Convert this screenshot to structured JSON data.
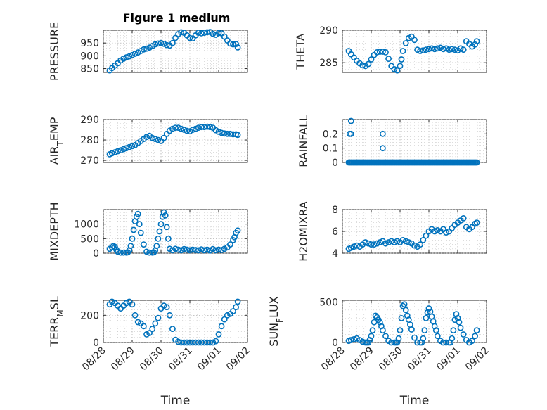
{
  "figure": {
    "title": "Figure 1 medium",
    "marker_color": "#0072BD"
  },
  "chart_data": [
    {
      "type": "scatter",
      "ylabel": "PRESSURE",
      "ylim": [
        835,
        1000
      ],
      "yticks": [
        850,
        900,
        950
      ],
      "xlim": [
        0,
        5
      ],
      "xticks": [],
      "grid": true,
      "series": [
        {
          "x": [
            0.22,
            0.3,
            0.4,
            0.5,
            0.6,
            0.7,
            0.8,
            0.9,
            1.0,
            1.1,
            1.2,
            1.3,
            1.4,
            1.5,
            1.6,
            1.7,
            1.8,
            1.9,
            2.0,
            2.1,
            2.2,
            2.3,
            2.4,
            2.5,
            2.6,
            2.7,
            2.8,
            2.9,
            3.0,
            3.1,
            3.2,
            3.3,
            3.4,
            3.5,
            3.6,
            3.7,
            3.8,
            3.9,
            4.0,
            4.1,
            4.2,
            4.3,
            4.4,
            4.5,
            4.6,
            4.66
          ],
          "y": [
            843,
            852,
            862,
            871,
            882,
            889,
            894,
            898,
            903,
            908,
            913,
            919,
            925,
            928,
            932,
            938,
            945,
            948,
            950,
            947,
            942,
            940,
            950,
            970,
            985,
            992,
            990,
            980,
            970,
            968,
            980,
            990,
            988,
            990,
            992,
            993,
            986,
            982,
            989,
            988,
            975,
            960,
            948,
            945,
            946,
            933
          ]
        }
      ]
    },
    {
      "type": "scatter",
      "ylabel": "THETA",
      "ylim": [
        283.5,
        290
      ],
      "yticks": [
        285,
        290
      ],
      "xlim": [
        0,
        5
      ],
      "xticks": [],
      "grid": true,
      "series": [
        {
          "x": [
            0.22,
            0.3,
            0.4,
            0.5,
            0.6,
            0.7,
            0.8,
            0.9,
            1.0,
            1.1,
            1.2,
            1.3,
            1.4,
            1.5,
            1.6,
            1.7,
            1.8,
            1.9,
            2.0,
            2.05,
            2.1,
            2.2,
            2.3,
            2.4,
            2.5,
            2.6,
            2.7,
            2.8,
            2.9,
            3.0,
            3.1,
            3.2,
            3.3,
            3.4,
            3.5,
            3.6,
            3.7,
            3.8,
            3.9,
            4.0,
            4.1,
            4.2,
            4.3,
            4.4,
            4.5,
            4.6,
            4.66
          ],
          "y": [
            286.8,
            286.3,
            285.8,
            285.3,
            284.9,
            284.6,
            284.5,
            284.8,
            285.5,
            286.2,
            286.6,
            286.7,
            286.7,
            286.6,
            285.6,
            284.5,
            284.0,
            283.8,
            284.5,
            285.5,
            286.8,
            288.0,
            288.8,
            289.0,
            288.5,
            287.0,
            286.8,
            286.9,
            287.0,
            287.1,
            287.2,
            287.1,
            287.2,
            287.3,
            287.1,
            287.2,
            287.0,
            287.1,
            287.0,
            286.9,
            287.2,
            287.0,
            288.3,
            287.9,
            287.5,
            287.8,
            288.3
          ]
        }
      ]
    },
    {
      "type": "scatter",
      "ylabel": "AIR_TEMP",
      "ylim": [
        269,
        290
      ],
      "yticks": [
        270,
        280,
        290
      ],
      "xlim": [
        0,
        5
      ],
      "xticks": [],
      "grid": true,
      "series": [
        {
          "x": [
            0.22,
            0.3,
            0.4,
            0.5,
            0.6,
            0.7,
            0.8,
            0.9,
            1.0,
            1.1,
            1.2,
            1.3,
            1.4,
            1.5,
            1.6,
            1.7,
            1.8,
            1.9,
            2.0,
            2.1,
            2.2,
            2.3,
            2.4,
            2.5,
            2.6,
            2.7,
            2.8,
            2.9,
            3.0,
            3.1,
            3.2,
            3.3,
            3.4,
            3.5,
            3.6,
            3.7,
            3.8,
            3.9,
            4.0,
            4.1,
            4.2,
            4.3,
            4.4,
            4.5,
            4.6,
            4.66
          ],
          "y": [
            273,
            273.5,
            274,
            274.5,
            275,
            275.5,
            276,
            276.5,
            277,
            277.5,
            278.5,
            279.5,
            280.5,
            281.5,
            282,
            281,
            280.5,
            280,
            279.5,
            281,
            283,
            284.5,
            285.5,
            286,
            286,
            285.5,
            285,
            284.5,
            284.3,
            285,
            285.5,
            286,
            286.3,
            286.3,
            286.5,
            286.3,
            286,
            284.8,
            284,
            283.5,
            283.2,
            283,
            283,
            282.8,
            282.8,
            282.5
          ]
        }
      ]
    },
    {
      "type": "scatter",
      "ylabel": "RAINFALL",
      "ylim": [
        0,
        0.3
      ],
      "yticks": [
        0,
        0.1,
        0.2
      ],
      "xlim": [
        0,
        5
      ],
      "xticks": [],
      "grid": true,
      "series": [
        {
          "x": [
            0.22,
            0.26,
            0.3,
            0.34,
            0.38,
            0.42,
            0.46,
            0.5,
            0.54,
            0.58,
            0.62,
            0.66,
            0.7,
            0.74,
            0.78,
            0.82,
            0.86,
            0.9,
            0.94,
            0.98,
            1.02,
            1.06,
            1.1,
            1.14,
            1.18,
            1.22,
            1.26,
            1.3,
            1.34,
            1.38,
            1.42,
            1.46,
            1.5,
            1.54,
            1.58,
            1.62,
            1.66,
            1.7,
            1.74,
            1.78,
            1.82,
            1.86,
            1.9,
            1.94,
            1.98,
            2.02,
            2.06,
            2.1,
            2.14,
            2.18,
            2.22,
            2.26,
            2.3,
            2.34,
            2.38,
            2.42,
            2.46,
            2.5,
            2.54,
            2.58,
            2.62,
            2.66,
            2.7,
            2.74,
            2.78,
            2.82,
            2.86,
            2.9,
            2.94,
            2.98,
            3.02,
            3.06,
            3.1,
            3.14,
            3.18,
            3.22,
            3.26,
            3.3,
            3.34,
            3.38,
            3.42,
            3.46,
            3.5,
            3.54,
            3.58,
            3.62,
            3.66,
            3.7,
            3.74,
            3.78,
            3.82,
            3.86,
            3.9,
            3.94,
            3.98,
            4.02,
            4.06,
            4.1,
            4.14,
            4.18,
            4.22,
            4.26,
            4.3,
            4.34,
            4.38,
            4.42,
            4.46,
            4.5,
            4.54,
            4.58,
            4.62,
            4.66,
            0.25,
            0.3,
            0.3,
            1.4,
            1.4
          ],
          "y": [
            0,
            0,
            0,
            0,
            0,
            0,
            0,
            0,
            0,
            0,
            0,
            0,
            0,
            0,
            0,
            0,
            0,
            0,
            0,
            0,
            0,
            0,
            0,
            0,
            0,
            0,
            0,
            0,
            0,
            0,
            0,
            0,
            0,
            0,
            0,
            0,
            0,
            0,
            0,
            0,
            0,
            0,
            0,
            0,
            0,
            0,
            0,
            0,
            0,
            0,
            0,
            0,
            0,
            0,
            0,
            0,
            0,
            0,
            0,
            0,
            0,
            0,
            0,
            0,
            0,
            0,
            0,
            0,
            0,
            0,
            0,
            0,
            0,
            0,
            0,
            0,
            0,
            0,
            0,
            0,
            0,
            0,
            0,
            0,
            0,
            0,
            0,
            0,
            0,
            0,
            0,
            0,
            0,
            0,
            0,
            0,
            0,
            0,
            0,
            0,
            0,
            0,
            0,
            0,
            0,
            0,
            0,
            0,
            0,
            0,
            0,
            0,
            0.2,
            0.2,
            0.29,
            0.2,
            0.1
          ]
        }
      ]
    },
    {
      "type": "scatter",
      "ylabel": "MIXDEPTH",
      "ylim": [
        0,
        1500
      ],
      "yticks": [
        0,
        500,
        1000
      ],
      "xlim": [
        0,
        5
      ],
      "xticks": [],
      "grid": true,
      "series": [
        {
          "x": [
            0.22,
            0.3,
            0.35,
            0.4,
            0.45,
            0.5,
            0.6,
            0.7,
            0.8,
            0.85,
            0.9,
            0.95,
            1.0,
            1.05,
            1.1,
            1.15,
            1.2,
            1.25,
            1.3,
            1.4,
            1.5,
            1.6,
            1.7,
            1.75,
            1.8,
            1.85,
            1.9,
            1.95,
            2.0,
            2.05,
            2.1,
            2.15,
            2.2,
            2.25,
            2.3,
            2.4,
            2.5,
            2.6,
            2.7,
            2.8,
            2.9,
            3.0,
            3.1,
            3.2,
            3.3,
            3.4,
            3.5,
            3.6,
            3.7,
            3.8,
            3.9,
            4.0,
            4.1,
            4.2,
            4.3,
            4.4,
            4.5,
            4.55,
            4.6,
            4.66
          ],
          "y": [
            150,
            200,
            250,
            220,
            120,
            50,
            20,
            20,
            20,
            30,
            100,
            250,
            500,
            800,
            1100,
            1250,
            1350,
            1000,
            700,
            300,
            50,
            20,
            20,
            30,
            100,
            250,
            500,
            750,
            1000,
            1250,
            1400,
            1300,
            900,
            500,
            150,
            100,
            150,
            120,
            100,
            140,
            120,
            100,
            120,
            110,
            100,
            130,
            100,
            120,
            90,
            140,
            100,
            120,
            110,
            150,
            200,
            300,
            450,
            550,
            700,
            780
          ]
        }
      ]
    },
    {
      "type": "scatter",
      "ylabel": "H2OMIXRA",
      "ylim": [
        4,
        8
      ],
      "yticks": [
        4,
        6,
        8
      ],
      "xlim": [
        0,
        5
      ],
      "xticks": [],
      "grid": true,
      "series": [
        {
          "x": [
            0.22,
            0.3,
            0.4,
            0.5,
            0.6,
            0.7,
            0.8,
            0.9,
            1.0,
            1.1,
            1.2,
            1.3,
            1.4,
            1.5,
            1.6,
            1.7,
            1.8,
            1.9,
            2.0,
            2.1,
            2.2,
            2.3,
            2.4,
            2.5,
            2.6,
            2.7,
            2.8,
            2.9,
            3.0,
            3.1,
            3.2,
            3.3,
            3.4,
            3.5,
            3.6,
            3.7,
            3.8,
            3.9,
            4.0,
            4.1,
            4.2,
            4.3,
            4.4,
            4.5,
            4.6,
            4.66
          ],
          "y": [
            4.4,
            4.5,
            4.6,
            4.7,
            4.6,
            4.8,
            5.0,
            4.9,
            4.8,
            4.8,
            4.9,
            5.0,
            5.1,
            4.9,
            5.0,
            5.1,
            5.0,
            5.1,
            5.0,
            5.2,
            5.1,
            5.0,
            4.9,
            4.7,
            4.6,
            4.8,
            5.2,
            5.6,
            6.0,
            6.2,
            6.0,
            6.1,
            6.0,
            6.2,
            5.9,
            6.0,
            6.3,
            6.6,
            6.8,
            7.0,
            7.2,
            6.4,
            6.2,
            6.4,
            6.7,
            6.8
          ]
        }
      ]
    },
    {
      "type": "scatter",
      "ylabel": "TERR_MSL",
      "ylim": [
        0,
        310
      ],
      "yticks": [
        0,
        200
      ],
      "xlim": [
        0,
        5
      ],
      "xticks": [
        "08/28",
        "08/29",
        "08/30",
        "08/31",
        "09/01",
        "09/02"
      ],
      "xtick_pos": [
        0,
        1,
        2,
        3,
        4,
        5
      ],
      "xlabel": "Time",
      "grid": true,
      "series": [
        {
          "x": [
            0.22,
            0.3,
            0.4,
            0.5,
            0.6,
            0.7,
            0.8,
            0.9,
            1.0,
            1.1,
            1.2,
            1.3,
            1.4,
            1.5,
            1.6,
            1.7,
            1.8,
            1.9,
            2.0,
            2.1,
            2.2,
            2.3,
            2.4,
            2.5,
            2.6,
            2.7,
            2.8,
            2.9,
            3.0,
            3.1,
            3.2,
            3.3,
            3.4,
            3.5,
            3.6,
            3.7,
            3.8,
            3.9,
            4.0,
            4.1,
            4.2,
            4.3,
            4.4,
            4.5,
            4.6,
            4.66
          ],
          "y": [
            280,
            300,
            290,
            270,
            250,
            270,
            290,
            300,
            280,
            200,
            150,
            140,
            120,
            60,
            70,
            100,
            140,
            180,
            250,
            270,
            260,
            200,
            100,
            20,
            5,
            0,
            0,
            0,
            0,
            0,
            0,
            0,
            0,
            0,
            0,
            0,
            0,
            10,
            60,
            120,
            170,
            200,
            210,
            230,
            260,
            300
          ]
        }
      ]
    },
    {
      "type": "scatter",
      "ylabel": "SUN_FLUX",
      "ylim": [
        0,
        520
      ],
      "yticks": [
        0,
        500
      ],
      "xlim": [
        0,
        5
      ],
      "xticks": [
        "08/28",
        "08/29",
        "08/30",
        "08/31",
        "09/01",
        "09/02"
      ],
      "xtick_pos": [
        0,
        1,
        2,
        3,
        4,
        5
      ],
      "xlabel": "Time",
      "grid": true,
      "series": [
        {
          "x": [
            0.22,
            0.3,
            0.4,
            0.5,
            0.6,
            0.7,
            0.8,
            0.85,
            0.9,
            0.95,
            1.0,
            1.05,
            1.1,
            1.15,
            1.2,
            1.25,
            1.3,
            1.35,
            1.4,
            1.5,
            1.6,
            1.7,
            1.8,
            1.85,
            1.9,
            1.95,
            2.0,
            2.05,
            2.1,
            2.15,
            2.2,
            2.25,
            2.3,
            2.35,
            2.4,
            2.5,
            2.6,
            2.7,
            2.75,
            2.8,
            2.85,
            2.9,
            2.95,
            3.0,
            3.05,
            3.1,
            3.15,
            3.2,
            3.25,
            3.3,
            3.4,
            3.5,
            3.6,
            3.7,
            3.75,
            3.8,
            3.85,
            3.9,
            3.95,
            4.0,
            4.05,
            4.1,
            4.2,
            4.3,
            4.4,
            4.5,
            4.6,
            4.66
          ],
          "y": [
            20,
            30,
            40,
            50,
            30,
            10,
            0,
            0,
            0,
            30,
            80,
            150,
            250,
            330,
            310,
            280,
            250,
            200,
            150,
            80,
            20,
            0,
            0,
            0,
            0,
            50,
            150,
            300,
            450,
            470,
            400,
            330,
            280,
            220,
            160,
            60,
            0,
            0,
            0,
            50,
            150,
            300,
            370,
            420,
            380,
            320,
            260,
            200,
            150,
            80,
            20,
            0,
            0,
            0,
            0,
            50,
            150,
            280,
            350,
            300,
            250,
            180,
            100,
            30,
            0,
            20,
            80,
            150
          ]
        }
      ]
    }
  ]
}
